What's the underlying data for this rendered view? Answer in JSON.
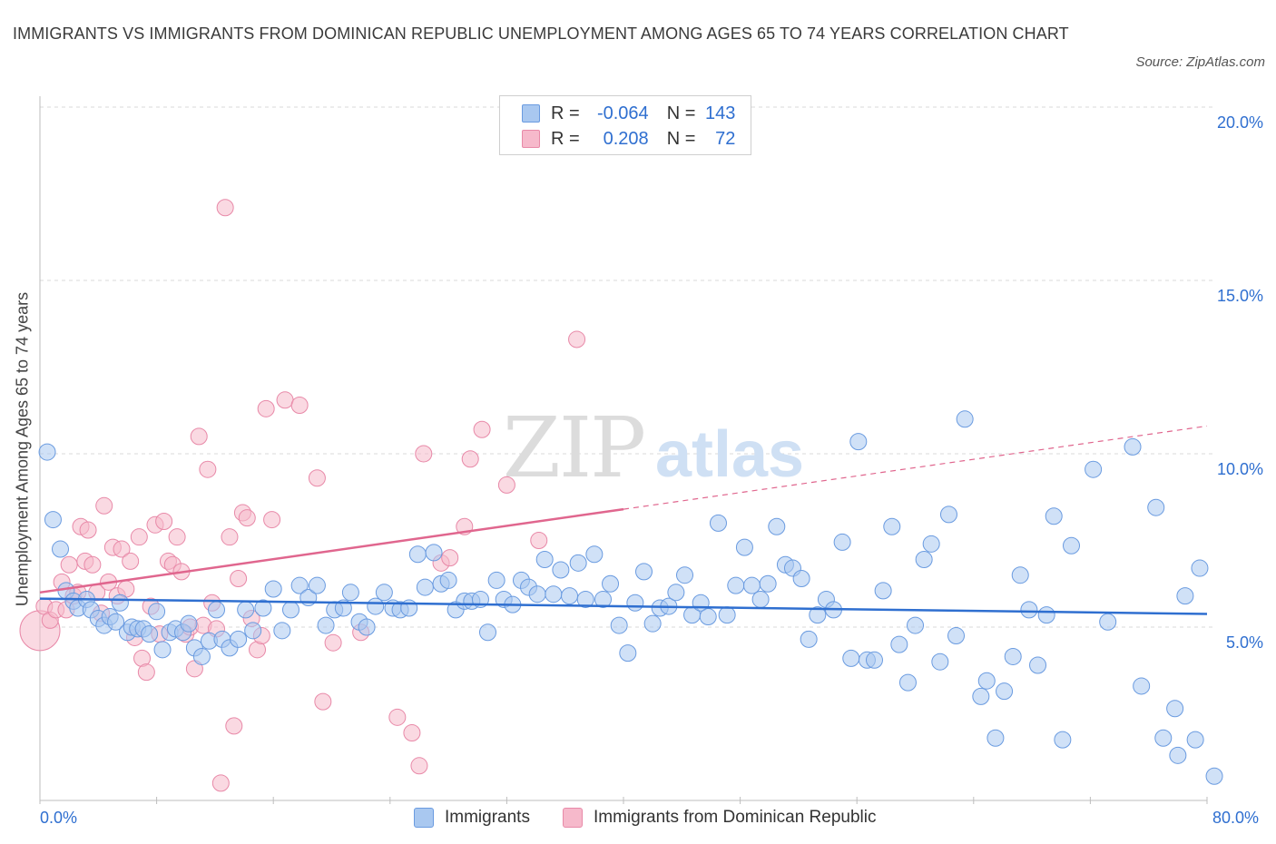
{
  "header": {
    "title": "IMMIGRANTS VS IMMIGRANTS FROM DOMINICAN REPUBLIC UNEMPLOYMENT AMONG AGES 65 TO 74 YEARS CORRELATION CHART",
    "source": "Source: ZipAtlas.com"
  },
  "legend_top": {
    "row1": {
      "r_label": "R =",
      "r_value": "-0.064",
      "n_label": "N =",
      "n_value": "143"
    },
    "row2": {
      "r_label": "R =",
      "r_value": "0.208",
      "n_label": "N =",
      "n_value": "72"
    }
  },
  "legend_bottom": {
    "item1": "Immigrants",
    "item2": "Immigrants from Dominican Republic"
  },
  "colors": {
    "blue_fill": "#a9c8f0",
    "blue_stroke": "#6a9be0",
    "blue_line": "#2f6fd0",
    "pink_fill": "#f6b9cb",
    "pink_stroke": "#e889a8",
    "pink_line": "#e0668e",
    "grid": "#d9d9d9",
    "axis_text": "#2f6fd0"
  },
  "chart_data": {
    "type": "scatter",
    "title": "IMMIGRANTS VS IMMIGRANTS FROM DOMINICAN REPUBLIC UNEMPLOYMENT AMONG AGES 65 TO 74 YEARS CORRELATION CHART",
    "xlabel": "",
    "ylabel": "Unemployment Among Ages 65 to 74 years",
    "xlim": [
      0,
      80
    ],
    "ylim": [
      0,
      20
    ],
    "x_tick_labels": [
      "0.0%",
      "80.0%"
    ],
    "y_tick_labels": [
      "5.0%",
      "10.0%",
      "15.0%",
      "20.0%"
    ],
    "y_ticks": [
      5,
      10,
      15,
      20
    ],
    "grid": true,
    "legend_position": "top-center",
    "watermark": "ZIPatlas",
    "series": [
      {
        "name": "Immigrants",
        "r": -0.064,
        "n": 143,
        "trend": {
          "x": [
            0,
            80
          ],
          "y": [
            5.82,
            5.38
          ],
          "dashed_from": null
        },
        "points": [
          [
            0.5,
            10.05
          ],
          [
            0.9,
            8.1
          ],
          [
            1.4,
            7.25
          ],
          [
            1.8,
            6.05
          ],
          [
            2.3,
            5.75
          ],
          [
            2.6,
            5.55
          ],
          [
            3.2,
            5.8
          ],
          [
            3.5,
            5.5
          ],
          [
            4.0,
            5.25
          ],
          [
            4.4,
            5.05
          ],
          [
            4.8,
            5.3
          ],
          [
            5.2,
            5.15
          ],
          [
            5.5,
            5.7
          ],
          [
            6.0,
            4.85
          ],
          [
            6.3,
            5.0
          ],
          [
            6.7,
            4.95
          ],
          [
            7.1,
            4.95
          ],
          [
            7.5,
            4.8
          ],
          [
            8.0,
            5.45
          ],
          [
            8.4,
            4.35
          ],
          [
            8.9,
            4.85
          ],
          [
            9.3,
            4.95
          ],
          [
            9.8,
            4.85
          ],
          [
            10.2,
            5.1
          ],
          [
            10.6,
            4.4
          ],
          [
            11.1,
            4.15
          ],
          [
            11.6,
            4.6
          ],
          [
            12.1,
            5.5
          ],
          [
            12.5,
            4.65
          ],
          [
            13.0,
            4.4
          ],
          [
            13.6,
            4.65
          ],
          [
            14.1,
            5.5
          ],
          [
            14.6,
            4.9
          ],
          [
            15.3,
            5.55
          ],
          [
            16.0,
            6.1
          ],
          [
            16.6,
            4.9
          ],
          [
            17.2,
            5.5
          ],
          [
            17.8,
            6.2
          ],
          [
            18.4,
            5.85
          ],
          [
            19.0,
            6.2
          ],
          [
            19.6,
            5.05
          ],
          [
            20.2,
            5.5
          ],
          [
            20.8,
            5.55
          ],
          [
            21.3,
            6.0
          ],
          [
            21.9,
            5.15
          ],
          [
            22.4,
            5.0
          ],
          [
            23.0,
            5.6
          ],
          [
            23.6,
            6.0
          ],
          [
            24.2,
            5.55
          ],
          [
            24.7,
            5.5
          ],
          [
            25.3,
            5.55
          ],
          [
            25.9,
            7.1
          ],
          [
            26.4,
            6.15
          ],
          [
            27.0,
            7.15
          ],
          [
            27.5,
            6.25
          ],
          [
            28.0,
            6.35
          ],
          [
            28.5,
            5.5
          ],
          [
            29.1,
            5.75
          ],
          [
            29.6,
            5.75
          ],
          [
            30.2,
            5.8
          ],
          [
            30.7,
            4.85
          ],
          [
            31.3,
            6.35
          ],
          [
            31.8,
            5.8
          ],
          [
            32.4,
            5.65
          ],
          [
            33.0,
            6.35
          ],
          [
            33.5,
            6.15
          ],
          [
            34.1,
            5.95
          ],
          [
            34.6,
            6.95
          ],
          [
            35.2,
            5.95
          ],
          [
            35.7,
            6.65
          ],
          [
            36.3,
            5.9
          ],
          [
            36.9,
            6.85
          ],
          [
            37.4,
            5.8
          ],
          [
            38.0,
            7.1
          ],
          [
            38.6,
            5.8
          ],
          [
            39.1,
            6.25
          ],
          [
            39.7,
            5.05
          ],
          [
            40.3,
            4.25
          ],
          [
            40.8,
            5.7
          ],
          [
            41.4,
            6.6
          ],
          [
            42.0,
            5.1
          ],
          [
            42.5,
            5.55
          ],
          [
            43.1,
            5.6
          ],
          [
            43.6,
            6.0
          ],
          [
            44.2,
            6.5
          ],
          [
            44.7,
            5.35
          ],
          [
            45.3,
            5.7
          ],
          [
            45.8,
            5.3
          ],
          [
            46.5,
            8.0
          ],
          [
            47.1,
            5.35
          ],
          [
            47.7,
            6.2
          ],
          [
            48.3,
            7.3
          ],
          [
            48.8,
            6.2
          ],
          [
            49.4,
            5.8
          ],
          [
            49.9,
            6.25
          ],
          [
            50.5,
            7.9
          ],
          [
            51.1,
            6.8
          ],
          [
            51.6,
            6.7
          ],
          [
            52.2,
            6.4
          ],
          [
            52.7,
            4.65
          ],
          [
            53.3,
            5.35
          ],
          [
            53.9,
            5.8
          ],
          [
            54.4,
            5.5
          ],
          [
            55.0,
            7.45
          ],
          [
            55.6,
            4.1
          ],
          [
            56.1,
            10.35
          ],
          [
            56.7,
            4.05
          ],
          [
            57.2,
            4.05
          ],
          [
            57.8,
            6.05
          ],
          [
            58.4,
            7.9
          ],
          [
            58.9,
            4.5
          ],
          [
            59.5,
            3.4
          ],
          [
            60.0,
            5.05
          ],
          [
            60.6,
            6.95
          ],
          [
            61.1,
            7.4
          ],
          [
            61.7,
            4.0
          ],
          [
            62.3,
            8.25
          ],
          [
            62.8,
            4.75
          ],
          [
            63.4,
            11.0
          ],
          [
            64.5,
            3.0
          ],
          [
            64.9,
            3.45
          ],
          [
            65.5,
            1.8
          ],
          [
            66.1,
            3.15
          ],
          [
            66.7,
            4.15
          ],
          [
            67.2,
            6.5
          ],
          [
            67.8,
            5.5
          ],
          [
            68.4,
            3.9
          ],
          [
            69.0,
            5.35
          ],
          [
            69.5,
            8.2
          ],
          [
            70.1,
            1.75
          ],
          [
            70.7,
            7.35
          ],
          [
            72.2,
            9.55
          ],
          [
            73.2,
            5.15
          ],
          [
            74.9,
            10.2
          ],
          [
            75.5,
            3.3
          ],
          [
            76.5,
            8.45
          ],
          [
            77.0,
            1.8
          ],
          [
            77.8,
            2.65
          ],
          [
            78.5,
            5.9
          ],
          [
            78.0,
            1.3
          ],
          [
            79.5,
            6.7
          ],
          [
            79.2,
            1.75
          ],
          [
            80.5,
            0.7
          ]
        ]
      },
      {
        "name": "Immigrants from Dominican Republic",
        "r": 0.208,
        "n": 72,
        "trend": {
          "x": [
            0,
            40
          ],
          "y": [
            6.0,
            8.4
          ],
          "dashed_to": {
            "x": 80,
            "y": 10.8
          }
        },
        "points": [
          [
            0.0,
            4.9
          ],
          [
            0.3,
            5.6
          ],
          [
            0.7,
            5.2
          ],
          [
            1.1,
            5.5
          ],
          [
            1.5,
            6.3
          ],
          [
            1.8,
            5.5
          ],
          [
            2.0,
            6.8
          ],
          [
            2.3,
            5.9
          ],
          [
            2.6,
            6.0
          ],
          [
            2.8,
            7.9
          ],
          [
            3.1,
            6.9
          ],
          [
            3.3,
            7.8
          ],
          [
            3.6,
            6.8
          ],
          [
            3.9,
            6.0
          ],
          [
            4.2,
            5.4
          ],
          [
            4.4,
            8.5
          ],
          [
            4.7,
            6.3
          ],
          [
            5.0,
            7.3
          ],
          [
            5.3,
            5.9
          ],
          [
            5.6,
            7.25
          ],
          [
            5.9,
            6.1
          ],
          [
            6.2,
            6.9
          ],
          [
            6.5,
            4.7
          ],
          [
            6.8,
            7.6
          ],
          [
            7.0,
            4.1
          ],
          [
            7.3,
            3.7
          ],
          [
            7.6,
            5.6
          ],
          [
            7.9,
            7.95
          ],
          [
            8.2,
            4.8
          ],
          [
            8.5,
            8.05
          ],
          [
            8.8,
            6.9
          ],
          [
            9.1,
            6.8
          ],
          [
            9.4,
            7.6
          ],
          [
            9.7,
            6.6
          ],
          [
            10.0,
            4.8
          ],
          [
            10.3,
            5.0
          ],
          [
            10.6,
            3.8
          ],
          [
            10.9,
            10.5
          ],
          [
            11.2,
            5.05
          ],
          [
            11.5,
            9.55
          ],
          [
            11.8,
            5.7
          ],
          [
            12.1,
            4.95
          ],
          [
            12.4,
            0.5
          ],
          [
            12.7,
            17.1
          ],
          [
            13.0,
            7.6
          ],
          [
            13.3,
            2.15
          ],
          [
            13.6,
            6.4
          ],
          [
            13.9,
            8.3
          ],
          [
            14.2,
            8.15
          ],
          [
            14.5,
            5.25
          ],
          [
            14.9,
            4.35
          ],
          [
            15.2,
            4.75
          ],
          [
            15.5,
            11.3
          ],
          [
            15.9,
            8.1
          ],
          [
            16.8,
            11.55
          ],
          [
            17.8,
            11.4
          ],
          [
            19.0,
            9.3
          ],
          [
            19.4,
            2.85
          ],
          [
            20.1,
            4.55
          ],
          [
            22.0,
            4.85
          ],
          [
            24.5,
            2.4
          ],
          [
            25.5,
            1.95
          ],
          [
            26.0,
            1.0
          ],
          [
            26.3,
            10.0
          ],
          [
            27.5,
            6.85
          ],
          [
            28.1,
            7.0
          ],
          [
            29.1,
            7.9
          ],
          [
            29.5,
            9.85
          ],
          [
            30.3,
            10.7
          ],
          [
            32.0,
            9.1
          ],
          [
            34.2,
            7.5
          ],
          [
            36.8,
            13.3
          ]
        ]
      }
    ]
  }
}
